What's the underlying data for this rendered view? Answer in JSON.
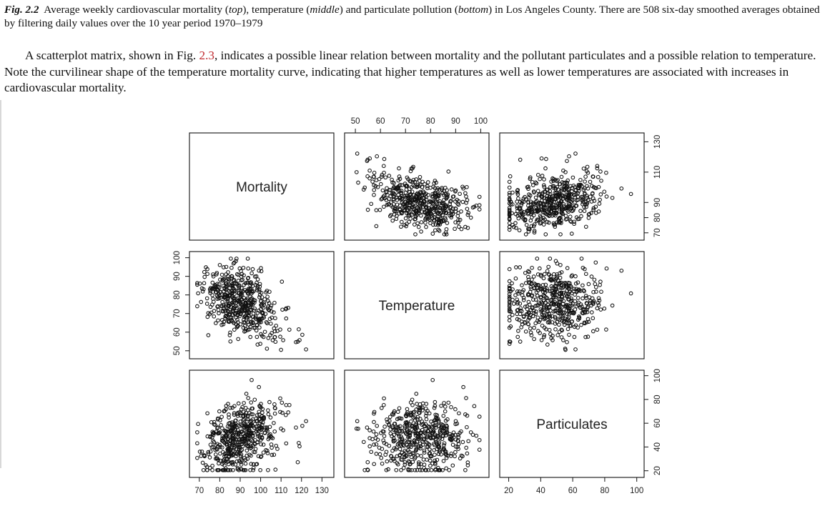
{
  "caption": {
    "label": "Fig. 2.2",
    "part1": "Average weekly cardiovascular mortality (",
    "top": "top",
    "part2": "), temperature (",
    "middle": "middle",
    "part3": ") and particulate pollution (",
    "bottom": "bottom",
    "part4": ") in Los Angeles County. There are 508 six-day smoothed averages obtained by filtering daily values over the 10 year period 1970–1979"
  },
  "paragraph": {
    "before_ref": "A scatterplot matrix, shown in Fig. ",
    "ref": "2.3",
    "after_ref": ", indicates a possible linear relation between mortality and the pollutant particulates and a possible relation to temperature. Note the curvilinear shape of the temperature mortality curve, indicating that higher temperatures as well as lower temperatures are associated with increases in cardiovascular mortality."
  },
  "colors": {
    "ref": "#c0282d",
    "ink": "#111111"
  },
  "chart_data": {
    "type": "scatter",
    "subtype": "scatterplot-matrix",
    "variables": [
      "Mortality",
      "Temperature",
      "Particulates"
    ],
    "n_points": 508,
    "ranges": {
      "Mortality": [
        68,
        133
      ],
      "Temperature": [
        48,
        101
      ],
      "Particulates": [
        18,
        101
      ]
    },
    "ticks": {
      "Mortality": [
        70,
        80,
        90,
        100,
        110,
        120,
        130
      ],
      "Mortality_right": [
        70,
        80,
        90,
        110,
        130
      ],
      "Temperature": [
        50,
        60,
        70,
        80,
        90,
        100
      ],
      "Particulates": [
        20,
        40,
        60,
        80,
        100
      ],
      "Particulates_right": [
        20,
        40,
        60,
        80,
        100
      ]
    },
    "relations": {
      "Mortality~Temperature": "curvilinear (U-shaped), negative overall",
      "Mortality~Particulates": "positive linear",
      "Temperature~Particulates": "weak"
    },
    "grid": false
  }
}
